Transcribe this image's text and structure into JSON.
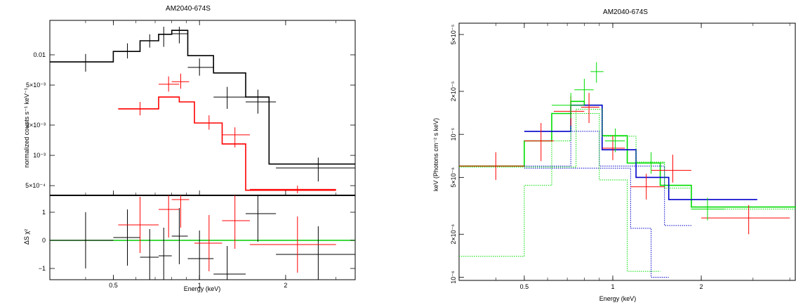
{
  "chart_data": [
    {
      "type": "line",
      "title": "AM2040-674S",
      "xlabel": "Energy (keV)",
      "ylabel": "normalized counts s⁻¹ keV⁻¹",
      "xscale": "log",
      "yscale": "log",
      "xlim": [
        0.3,
        3.5
      ],
      "ylim": [
        0.0004,
        0.022
      ],
      "xticks": [
        {
          "v": 0.5,
          "label": "0.5"
        },
        {
          "v": 1,
          "label": "1"
        },
        {
          "v": 2,
          "label": "2"
        }
      ],
      "yticks": [
        {
          "v": 0.0005,
          "label": "5×10⁻⁴"
        },
        {
          "v": 0.001,
          "label": "10⁻³"
        },
        {
          "v": 0.002,
          "label": "2×10⁻³"
        },
        {
          "v": 0.005,
          "label": "5×10⁻³"
        },
        {
          "v": 0.01,
          "label": "0.01"
        }
      ],
      "series": [
        {
          "color": "#000000",
          "model_steps": [
            [
              0.3,
              0.0085
            ],
            [
              0.5,
              0.0108
            ],
            [
              0.62,
              0.0138
            ],
            [
              0.72,
              0.016
            ],
            [
              0.8,
              0.0175
            ],
            [
              0.91,
              0.0098
            ],
            [
              1.12,
              0.0066
            ],
            [
              1.45,
              0.0038
            ],
            [
              1.75,
              0.00082
            ],
            [
              3.5,
              0.00075
            ]
          ],
          "points": [
            {
              "x": 0.4,
              "xl": 0.3,
              "xh": 0.5,
              "y": 0.0085,
              "yl": 0.0068,
              "yh": 0.0102
            },
            {
              "x": 0.56,
              "xl": 0.5,
              "xh": 0.62,
              "y": 0.0108,
              "yl": 0.0092,
              "yh": 0.013
            },
            {
              "x": 0.67,
              "xl": 0.62,
              "xh": 0.72,
              "y": 0.0138,
              "yl": 0.0118,
              "yh": 0.016
            },
            {
              "x": 0.75,
              "xl": 0.72,
              "xh": 0.8,
              "y": 0.016,
              "yl": 0.012,
              "yh": 0.019
            },
            {
              "x": 0.85,
              "xl": 0.8,
              "xh": 0.91,
              "y": 0.0162,
              "yl": 0.013,
              "yh": 0.019
            },
            {
              "x": 1.0,
              "xl": 0.91,
              "xh": 1.12,
              "y": 0.0075,
              "yl": 0.0062,
              "yh": 0.0092
            },
            {
              "x": 1.25,
              "xl": 1.12,
              "xh": 1.45,
              "y": 0.0038,
              "yl": 0.0029,
              "yh": 0.0048
            },
            {
              "x": 1.6,
              "xl": 1.45,
              "xh": 1.85,
              "y": 0.0034,
              "yl": 0.0026,
              "yh": 0.0045
            },
            {
              "x": 2.6,
              "xl": 1.85,
              "xh": 3.5,
              "y": 0.00075,
              "yl": 0.00055,
              "yh": 0.00095
            }
          ]
        },
        {
          "color": "#ff0000",
          "model_steps": [
            [
              0.52,
              0.0029
            ],
            [
              0.72,
              0.0038
            ],
            [
              0.85,
              0.0034
            ],
            [
              0.96,
              0.0021
            ],
            [
              1.2,
              0.0013
            ],
            [
              1.45,
              0.00045
            ],
            [
              3.0,
              0.00045
            ]
          ],
          "points": [
            {
              "x": 0.62,
              "xl": 0.52,
              "xh": 0.72,
              "y": 0.0029,
              "yl": 0.0025,
              "yh": 0.0034
            },
            {
              "x": 0.78,
              "xl": 0.72,
              "xh": 0.85,
              "y": 0.0051,
              "yl": 0.0043,
              "yh": 0.0061
            },
            {
              "x": 0.86,
              "xl": 0.8,
              "xh": 0.92,
              "y": 0.0054,
              "yl": 0.0046,
              "yh": 0.0065
            },
            {
              "x": 1.08,
              "xl": 0.96,
              "xh": 1.2,
              "y": 0.0021,
              "yl": 0.0018,
              "yh": 0.0025
            },
            {
              "x": 1.33,
              "xl": 1.2,
              "xh": 1.5,
              "y": 0.0016,
              "yl": 0.0012,
              "yh": 0.0019
            },
            {
              "x": 2.2,
              "xl": 1.5,
              "xh": 3.0,
              "y": 0.00046,
              "yl": 0.00042,
              "yh": 0.0005
            }
          ]
        }
      ]
    },
    {
      "type": "scatter",
      "ylabel": "ΔS χ²",
      "xlabel": "Energy (keV)",
      "xscale": "log",
      "xlim": [
        0.3,
        3.5
      ],
      "ylim": [
        -1.4,
        1.6
      ],
      "yticks": [
        {
          "v": -1,
          "label": "−1"
        },
        {
          "v": 0,
          "label": "0"
        },
        {
          "v": 1,
          "label": "1"
        }
      ],
      "zero_line_color": "#00cc00",
      "series": [
        {
          "color": "#000000",
          "points": [
            {
              "x": 0.4,
              "xl": 0.3,
              "xh": 0.5,
              "y": 0.0,
              "yl": -1.0,
              "yh": 1.0
            },
            {
              "x": 0.56,
              "xl": 0.5,
              "xh": 0.62,
              "y": 0.1,
              "yl": -0.9,
              "yh": 1.1
            },
            {
              "x": 0.67,
              "xl": 0.62,
              "xh": 0.72,
              "y": -0.6,
              "yl": -1.6,
              "yh": 0.4
            },
            {
              "x": 0.75,
              "xl": 0.72,
              "xh": 0.8,
              "y": -0.55,
              "yl": -1.55,
              "yh": 0.45
            },
            {
              "x": 0.85,
              "xl": 0.8,
              "xh": 0.91,
              "y": 0.15,
              "yl": -0.85,
              "yh": 1.15
            },
            {
              "x": 1.0,
              "xl": 0.91,
              "xh": 1.12,
              "y": -0.65,
              "yl": -1.65,
              "yh": 0.35
            },
            {
              "x": 1.25,
              "xl": 1.12,
              "xh": 1.45,
              "y": -1.2,
              "yl": -2.2,
              "yh": -0.2
            },
            {
              "x": 1.6,
              "xl": 1.45,
              "xh": 1.85,
              "y": 0.95,
              "yl": -0.05,
              "yh": 1.95
            },
            {
              "x": 2.6,
              "xl": 1.85,
              "xh": 3.5,
              "y": -0.5,
              "yl": -1.5,
              "yh": 0.5
            }
          ]
        },
        {
          "color": "#ff0000",
          "points": [
            {
              "x": 0.62,
              "xl": 0.52,
              "xh": 0.72,
              "y": 0.55,
              "yl": -0.45,
              "yh": 1.55
            },
            {
              "x": 0.78,
              "xl": 0.72,
              "xh": 0.85,
              "y": 1.1,
              "yl": 0.1,
              "yh": 2.1
            },
            {
              "x": 0.86,
              "xl": 0.8,
              "xh": 0.92,
              "y": 1.45,
              "yl": 0.45,
              "yh": 2.45
            },
            {
              "x": 1.08,
              "xl": 0.96,
              "xh": 1.2,
              "y": -0.1,
              "yl": -1.1,
              "yh": 0.9
            },
            {
              "x": 1.33,
              "xl": 1.2,
              "xh": 1.5,
              "y": 0.7,
              "yl": -0.3,
              "yh": 1.7
            },
            {
              "x": 2.2,
              "xl": 1.5,
              "xh": 3.0,
              "y": -0.15,
              "yl": -1.15,
              "yh": 0.85
            }
          ]
        }
      ]
    },
    {
      "type": "line",
      "title": "AM2040-674S",
      "xlabel": "Energy (keV)",
      "ylabel": "keV (Photons cm⁻² s keV)",
      "xscale": "log",
      "yscale": "log",
      "xlim": [
        0.3,
        4.2
      ],
      "ylim": [
        9.5e-07,
        6e-05
      ],
      "xticks": [
        {
          "v": 0.5,
          "label": "0.5"
        },
        {
          "v": 1,
          "label": "1"
        },
        {
          "v": 2,
          "label": "2"
        }
      ],
      "yticks": [
        {
          "v": 1e-06,
          "label": "10⁻⁶"
        },
        {
          "v": 2e-06,
          "label": "2×10⁻⁶"
        },
        {
          "v": 5e-06,
          "label": "5×10⁻⁶"
        },
        {
          "v": 1e-05,
          "label": "10⁻⁵"
        },
        {
          "v": 2e-05,
          "label": "2×10⁻⁵"
        },
        {
          "v": 5e-05,
          "label": "5×10⁻⁵"
        }
      ],
      "series": [
        {
          "color": "#00dd00",
          "style": "solid",
          "steps": [
            [
              0.3,
              6e-06
            ],
            [
              0.5,
              9e-06
            ],
            [
              0.62,
              1.4e-05
            ],
            [
              0.72,
              1.7e-05
            ],
            [
              0.8,
              1.6e-05
            ],
            [
              0.92,
              9.8e-06
            ],
            [
              1.12,
              6.3e-06
            ],
            [
              1.45,
              4.4e-06
            ],
            [
              1.85,
              3.1e-06
            ],
            [
              3.5,
              3.1e-06
            ],
            [
              4.2,
              3.1e-06
            ]
          ]
        },
        {
          "color": "#0000cc",
          "style": "solid",
          "steps": [
            [
              0.5,
              1.05e-05
            ],
            [
              0.72,
              1.6e-05
            ],
            [
              0.92,
              7.8e-06
            ],
            [
              1.2,
              5e-06
            ],
            [
              1.55,
              3.5e-06
            ],
            [
              3.1,
              3.5e-06
            ]
          ]
        },
        {
          "color": "#0000cc",
          "style": "dotted",
          "steps": [
            [
              0.5,
              6e-06
            ],
            [
              0.72,
              1.05e-05
            ],
            [
              0.9,
              6e-06
            ],
            [
              1.5,
              2.3e-06
            ],
            [
              1.85,
              2.3e-06
            ]
          ]
        },
        {
          "color": "#0000cc",
          "style": "dotted",
          "steps": [
            [
              0.5,
              5.8e-06
            ],
            [
              0.9,
              5.8e-06
            ],
            [
              1.15,
              2.2e-06
            ],
            [
              1.35,
              1e-06
            ],
            [
              1.55,
              9.7e-07
            ]
          ]
        },
        {
          "color": "#00dd00",
          "style": "dotted",
          "steps": [
            [
              0.3,
              1.4e-06
            ],
            [
              0.5,
              4.4e-06
            ],
            [
              0.62,
              9e-06
            ],
            [
              0.72,
              1.4e-05
            ],
            [
              0.9,
              4.8e-06
            ],
            [
              1.12,
              1.1e-06
            ],
            [
              1.45,
              9.8e-07
            ]
          ]
        },
        {
          "color": "#00dd00",
          "style": "dotted",
          "steps": [
            [
              0.3,
              5.9e-06
            ],
            [
              0.62,
              5.9e-06
            ],
            [
              0.75,
              1.5e-05
            ],
            [
              0.92,
              9.7e-06
            ],
            [
              1.2,
              6.4e-06
            ],
            [
              1.5,
              4.2e-06
            ],
            [
              1.85,
              3e-06
            ],
            [
              4.2,
              3e-06
            ]
          ]
        }
      ],
      "points": [
        {
          "color": "#ff0000",
          "x": 0.4,
          "xl": 0.3,
          "xh": 0.5,
          "y": 6e-06,
          "yl": 4.8e-06,
          "yh": 7.5e-06
        },
        {
          "color": "#ff0000",
          "x": 0.57,
          "xl": 0.5,
          "xh": 0.63,
          "y": 9e-06,
          "yl": 6.5e-06,
          "yh": 1.2e-05
        },
        {
          "color": "#ff0000",
          "x": 0.72,
          "xl": 0.63,
          "xh": 0.8,
          "y": 1.45e-05,
          "yl": 1.15e-05,
          "yh": 1.85e-05
        },
        {
          "color": "#ff0000",
          "x": 0.83,
          "xl": 0.78,
          "xh": 0.9,
          "y": 1.55e-05,
          "yl": 1.2e-05,
          "yh": 1.95e-05
        },
        {
          "color": "#ff0000",
          "x": 1.0,
          "xl": 0.92,
          "xh": 1.1,
          "y": 8e-06,
          "yl": 6.6e-06,
          "yh": 9.8e-06
        },
        {
          "color": "#ff0000",
          "x": 1.3,
          "xl": 1.15,
          "xh": 1.5,
          "y": 4.3e-06,
          "yl": 3.5e-06,
          "yh": 5.3e-06
        },
        {
          "color": "#ff0000",
          "x": 1.6,
          "xl": 1.35,
          "xh": 1.85,
          "y": 5.6e-06,
          "yl": 4.6e-06,
          "yh": 7.2e-06
        },
        {
          "color": "#ff0000",
          "x": 2.9,
          "xl": 2.0,
          "xh": 4.0,
          "y": 2.6e-06,
          "yl": 2e-06,
          "yh": 3.2e-06
        },
        {
          "color": "#00dd00",
          "x": 0.72,
          "xl": 0.62,
          "xh": 0.8,
          "y": 1.6e-05,
          "yl": 1.3e-05,
          "yh": 1.95e-05
        },
        {
          "color": "#00dd00",
          "x": 0.8,
          "xl": 0.74,
          "xh": 0.86,
          "y": 2.05e-05,
          "yl": 1.7e-05,
          "yh": 2.45e-05
        },
        {
          "color": "#00dd00",
          "x": 0.88,
          "xl": 0.84,
          "xh": 0.93,
          "y": 2.75e-05,
          "yl": 2.3e-05,
          "yh": 3.2e-05
        },
        {
          "color": "#00dd00",
          "x": 1.02,
          "xl": 0.94,
          "xh": 1.1,
          "y": 9e-06,
          "yl": 7.5e-06,
          "yh": 1.1e-05
        },
        {
          "color": "#00dd00",
          "x": 1.35,
          "xl": 1.2,
          "xh": 1.5,
          "y": 6.3e-06,
          "yl": 5.3e-06,
          "yh": 7.5e-06
        },
        {
          "color": "#00dd00",
          "x": 2.1,
          "xl": 1.85,
          "xh": 2.4,
          "y": 3e-06,
          "yl": 2.5e-06,
          "yh": 3.6e-06
        }
      ]
    }
  ]
}
